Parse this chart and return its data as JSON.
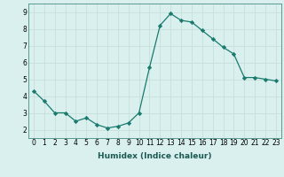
{
  "x": [
    0,
    1,
    2,
    3,
    4,
    5,
    6,
    7,
    8,
    9,
    10,
    11,
    12,
    13,
    14,
    15,
    16,
    17,
    18,
    19,
    20,
    21,
    22,
    23
  ],
  "y": [
    4.3,
    3.7,
    3.0,
    3.0,
    2.5,
    2.7,
    2.3,
    2.1,
    2.2,
    2.4,
    3.0,
    5.7,
    8.2,
    8.9,
    8.5,
    8.4,
    7.9,
    7.4,
    6.9,
    6.5,
    5.1,
    5.1,
    5.0,
    4.9
  ],
  "xlabel": "Humidex (Indice chaleur)",
  "xlim": [
    -0.5,
    23.5
  ],
  "ylim": [
    1.5,
    9.5
  ],
  "yticks": [
    2,
    3,
    4,
    5,
    6,
    7,
    8,
    9
  ],
  "xticks": [
    0,
    1,
    2,
    3,
    4,
    5,
    6,
    7,
    8,
    9,
    10,
    11,
    12,
    13,
    14,
    15,
    16,
    17,
    18,
    19,
    20,
    21,
    22,
    23
  ],
  "line_color": "#1a7a6e",
  "marker": "D",
  "marker_size": 2.2,
  "bg_color": "#d9f0ee",
  "grid_color": "#c8e0dc",
  "axis_bg": "#d9f0ee",
  "tick_fontsize": 5.5,
  "xlabel_fontsize": 6.5
}
